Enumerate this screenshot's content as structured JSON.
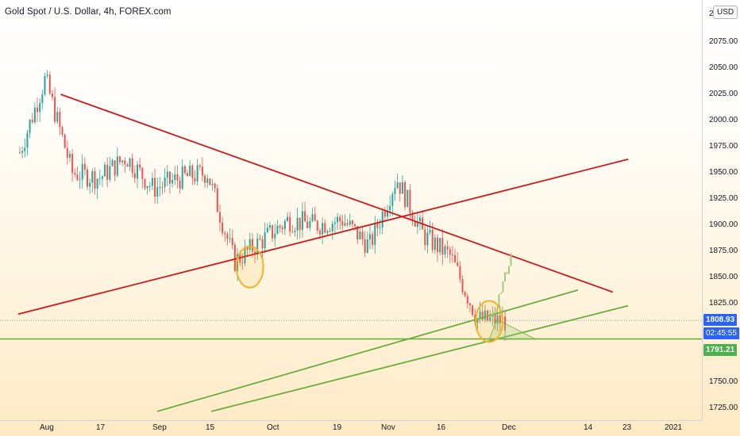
{
  "header": {
    "title": "Gold Spot / U.S. Dollar, 4h, FOREX.com",
    "currency_button": "USD"
  },
  "price_axis": {
    "ticks": [
      "2075.00",
      "2050.00",
      "2025.00",
      "2000.00",
      "1975.00",
      "1950.00",
      "1925.00",
      "1900.00",
      "1875.00",
      "1850.00",
      "1825.00",
      "1750.00",
      "1725.00"
    ],
    "top_partial": "2"
  },
  "time_axis": {
    "ticks": [
      "Aug",
      "17",
      "Sep",
      "15",
      "Oct",
      "19",
      "Nov",
      "16",
      "Dec",
      "14",
      "23",
      "2021"
    ]
  },
  "badges": {
    "last_price": "1808.93",
    "countdown": "02:45:55",
    "support_level": "1791.21"
  },
  "colors": {
    "up_candle": "#26a69a",
    "down_candle": "#ef5350",
    "triangle_line": "#cc1a1a",
    "channel_line": "#6aae3f",
    "highlight_circle": "#f0b429",
    "projection": "#9ccc7a",
    "last_price_badge": "#2962ff",
    "countdown_badge": "#2962ff",
    "support_badge": "#4caf50"
  },
  "chart_data": {
    "type": "candlestick",
    "symbol": "XAUUSD",
    "interval": "4h",
    "ylim": [
      1720,
      2100
    ],
    "x": [
      "Jul 27",
      "Aug 03",
      "Aug 10",
      "Aug 17",
      "Aug 24",
      "Aug 31",
      "Sep 07",
      "Sep 14",
      "Sep 21",
      "Sep 28",
      "Oct 05",
      "Oct 12",
      "Oct 19",
      "Oct 26",
      "Nov 02",
      "Nov 09",
      "Nov 16",
      "Nov 23",
      "Nov 30"
    ],
    "close": [
      1965,
      2040,
      1950,
      1945,
      1965,
      1935,
      1945,
      1950,
      1865,
      1885,
      1905,
      1900,
      1905,
      1880,
      1945,
      1890,
      1870,
      1810,
      1808
    ],
    "last_price": 1808.93,
    "support_level": 1791.21,
    "annotations": [
      {
        "type": "trendline",
        "role": "descending resistance",
        "from": [
          "Aug 07",
          2025
        ],
        "to": [
          "Dec 28",
          1836
        ]
      },
      {
        "type": "trendline",
        "role": "ascending resistance",
        "from": [
          "Jul 27",
          1815
        ],
        "to": [
          "Jan 01",
          1963
        ]
      },
      {
        "type": "trendline",
        "role": "ascending support",
        "from": [
          "Sep 01",
          1722
        ],
        "to": [
          "Dec 19",
          1838
        ]
      },
      {
        "type": "trendline",
        "role": "ascending support",
        "from": [
          "Sep 15",
          1722
        ],
        "to": [
          "Jan 01",
          1823
        ]
      },
      {
        "type": "horizontal",
        "level": 1791.21
      },
      {
        "type": "circle",
        "at": [
          "Sep 25",
          1860
        ]
      },
      {
        "type": "circle",
        "at": [
          "Nov 26",
          1808
        ]
      },
      {
        "type": "projection",
        "from": [
          "Nov 27",
          1812
        ],
        "to": [
          "Dec 02",
          1875
        ]
      }
    ]
  }
}
